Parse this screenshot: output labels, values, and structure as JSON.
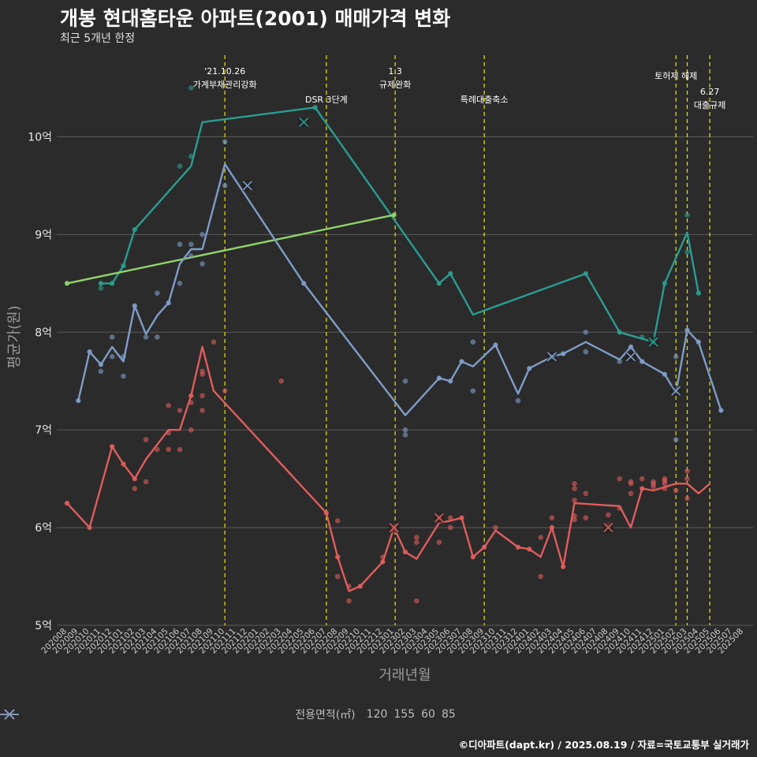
{
  "title": "개봉 현대홈타운 아파트(2001) 매매가격 변화",
  "subtitle": "최근 5개년 한정",
  "caption": "©디아파트(dapt.kr) / 2025.08.19 / 자료=국토교통부 실거래가",
  "chart_data": {
    "type": "line",
    "xlabel": "거래년월",
    "ylabel": "평균가(원)",
    "ylim": [
      5,
      10.9
    ],
    "yticks": [
      {
        "v": 5,
        "label": "5억"
      },
      {
        "v": 6,
        "label": "6억"
      },
      {
        "v": 7,
        "label": "7억"
      },
      {
        "v": 8,
        "label": "8억"
      },
      {
        "v": 9,
        "label": "9억"
      },
      {
        "v": 10,
        "label": "10억"
      }
    ],
    "months": [
      "202008",
      "202009",
      "202010",
      "202011",
      "202012",
      "202101",
      "202102",
      "202103",
      "202104",
      "202105",
      "202106",
      "202107",
      "202108",
      "202109",
      "202110",
      "202111",
      "202112",
      "202201",
      "202202",
      "202203",
      "202204",
      "202205",
      "202206",
      "202207",
      "202208",
      "202209",
      "202210",
      "202211",
      "202212",
      "202301",
      "202302",
      "202303",
      "202304",
      "202305",
      "202306",
      "202307",
      "202308",
      "202309",
      "202310",
      "202311",
      "202312",
      "202401",
      "202402",
      "202403",
      "202404",
      "202405",
      "202406",
      "202407",
      "202408",
      "202409",
      "202410",
      "202411",
      "202412",
      "202501",
      "202502",
      "202503",
      "202504",
      "202505",
      "202506",
      "202507",
      "202508"
    ],
    "legend_title": "전용면적(㎡)",
    "series": [
      {
        "name": "120",
        "color": "#2a9d8f",
        "line": [
          [
            3,
            8.5
          ],
          [
            4,
            8.5
          ],
          [
            5,
            8.68
          ],
          [
            6,
            9.05
          ],
          [
            11,
            9.7
          ],
          [
            12,
            10.15
          ],
          [
            22,
            10.3
          ],
          [
            33,
            8.5
          ],
          [
            34,
            8.6
          ],
          [
            36,
            8.18
          ],
          [
            46,
            8.6
          ],
          [
            49,
            8.0
          ],
          [
            52,
            7.9
          ],
          [
            53,
            8.5
          ],
          [
            55,
            9.02
          ],
          [
            56,
            8.4
          ]
        ],
        "points": [
          [
            3,
            8.45
          ],
          [
            3,
            8.5
          ],
          [
            4,
            8.5
          ],
          [
            5,
            8.68
          ],
          [
            6,
            9.05
          ],
          [
            10,
            9.7
          ],
          [
            11,
            10.5
          ],
          [
            11,
            9.8
          ],
          [
            22,
            10.3
          ],
          [
            33,
            8.5
          ],
          [
            34,
            8.6
          ],
          [
            46,
            8.6
          ],
          [
            49,
            8.0
          ],
          [
            51,
            7.95
          ],
          [
            52,
            7.9
          ],
          [
            53,
            8.5
          ],
          [
            55,
            9.2
          ],
          [
            55,
            8.82
          ],
          [
            56,
            8.4
          ]
        ],
        "crosses": [
          [
            21,
            10.15
          ],
          [
            52,
            7.9
          ]
        ]
      },
      {
        "name": "155",
        "color": "#8fd46a",
        "line": [
          [
            0,
            8.5
          ],
          [
            29,
            9.2
          ]
        ],
        "points": [
          [
            0,
            8.5
          ],
          [
            29,
            9.2
          ]
        ],
        "crosses": []
      },
      {
        "name": "60",
        "color": "#e05c5c",
        "line": [
          [
            0,
            6.25
          ],
          [
            2,
            6.0
          ],
          [
            4,
            6.83
          ],
          [
            5,
            6.65
          ],
          [
            6,
            6.5
          ],
          [
            7,
            6.7
          ],
          [
            9,
            7.0
          ],
          [
            10,
            7.0
          ],
          [
            11,
            7.35
          ],
          [
            12,
            7.85
          ],
          [
            13,
            7.4
          ],
          [
            23,
            6.15
          ],
          [
            24,
            5.7
          ],
          [
            25,
            5.35
          ],
          [
            26,
            5.4
          ],
          [
            28,
            5.65
          ],
          [
            29,
            6.0
          ],
          [
            30,
            5.75
          ],
          [
            31,
            5.68
          ],
          [
            33,
            6.05
          ],
          [
            34,
            6.07
          ],
          [
            35,
            6.1
          ],
          [
            36,
            5.7
          ],
          [
            37,
            5.8
          ],
          [
            38,
            5.97
          ],
          [
            40,
            5.8
          ],
          [
            41,
            5.78
          ],
          [
            42,
            5.7
          ],
          [
            43,
            6.0
          ],
          [
            44,
            5.6
          ],
          [
            45,
            6.25
          ],
          [
            49,
            6.22
          ],
          [
            50,
            6.0
          ],
          [
            51,
            6.4
          ],
          [
            52,
            6.38
          ],
          [
            54,
            6.45
          ],
          [
            55,
            6.45
          ],
          [
            56,
            6.35
          ],
          [
            57,
            6.45
          ]
        ],
        "points": [
          [
            0,
            6.25
          ],
          [
            2,
            6.0
          ],
          [
            4,
            6.83
          ],
          [
            5,
            6.65
          ],
          [
            6,
            6.4
          ],
          [
            6,
            6.5
          ],
          [
            7,
            6.9
          ],
          [
            7,
            6.47
          ],
          [
            8,
            6.8
          ],
          [
            9,
            7.25
          ],
          [
            9,
            6.97
          ],
          [
            9,
            6.8
          ],
          [
            10,
            7.2
          ],
          [
            10,
            6.8
          ],
          [
            11,
            7.35
          ],
          [
            11,
            7.28
          ],
          [
            11,
            7.0
          ],
          [
            12,
            7.6
          ],
          [
            12,
            7.57
          ],
          [
            12,
            7.35
          ],
          [
            12,
            7.2
          ],
          [
            13,
            7.9
          ],
          [
            14,
            7.4
          ],
          [
            19,
            7.5
          ],
          [
            23,
            6.15
          ],
          [
            24,
            6.07
          ],
          [
            24,
            5.7
          ],
          [
            24,
            5.5
          ],
          [
            25,
            5.4
          ],
          [
            25,
            5.25
          ],
          [
            26,
            5.4
          ],
          [
            28,
            5.7
          ],
          [
            28,
            5.65
          ],
          [
            29,
            6.0
          ],
          [
            29,
            5.97
          ],
          [
            30,
            5.75
          ],
          [
            31,
            5.9
          ],
          [
            31,
            5.85
          ],
          [
            31,
            5.25
          ],
          [
            33,
            6.1
          ],
          [
            33,
            5.85
          ],
          [
            34,
            6.1
          ],
          [
            34,
            6.0
          ],
          [
            35,
            6.1
          ],
          [
            36,
            5.7
          ],
          [
            37,
            5.8
          ],
          [
            38,
            6.0
          ],
          [
            40,
            5.8
          ],
          [
            41,
            5.78
          ],
          [
            42,
            5.9
          ],
          [
            42,
            5.5
          ],
          [
            43,
            6.1
          ],
          [
            43,
            6.0
          ],
          [
            44,
            5.6
          ],
          [
            45,
            6.45
          ],
          [
            45,
            6.4
          ],
          [
            45,
            6.28
          ],
          [
            45,
            6.12
          ],
          [
            45,
            6.08
          ],
          [
            46,
            6.35
          ],
          [
            46,
            6.1
          ],
          [
            48,
            6.13
          ],
          [
            48,
            6.03
          ],
          [
            49,
            6.5
          ],
          [
            49,
            6.2
          ],
          [
            50,
            6.47
          ],
          [
            50,
            6.45
          ],
          [
            50,
            6.35
          ],
          [
            51,
            6.5
          ],
          [
            51,
            6.4
          ],
          [
            52,
            6.47
          ],
          [
            52,
            6.45
          ],
          [
            52,
            6.42
          ],
          [
            53,
            6.5
          ],
          [
            53,
            6.48
          ],
          [
            53,
            6.45
          ],
          [
            53,
            6.4
          ],
          [
            54,
            6.38
          ],
          [
            55,
            6.58
          ],
          [
            55,
            6.5
          ],
          [
            55,
            6.3
          ]
        ],
        "crosses": [
          [
            29,
            6.0
          ],
          [
            33,
            6.1
          ],
          [
            48,
            6.0
          ]
        ]
      },
      {
        "name": "85",
        "color": "#7f9cc8",
        "line": [
          [
            1,
            7.3
          ],
          [
            2,
            7.8
          ],
          [
            3,
            7.67
          ],
          [
            4,
            7.85
          ],
          [
            5,
            7.7
          ],
          [
            6,
            8.27
          ],
          [
            7,
            7.98
          ],
          [
            8,
            8.17
          ],
          [
            9,
            8.3
          ],
          [
            10,
            8.7
          ],
          [
            11,
            8.85
          ],
          [
            12,
            8.85
          ],
          [
            14,
            9.72
          ],
          [
            21,
            8.5
          ],
          [
            30,
            7.15
          ],
          [
            33,
            7.53
          ],
          [
            34,
            7.5
          ],
          [
            35,
            7.7
          ],
          [
            36,
            7.65
          ],
          [
            38,
            7.87
          ],
          [
            40,
            7.37
          ],
          [
            41,
            7.63
          ],
          [
            43,
            7.75
          ],
          [
            44,
            7.78
          ],
          [
            46,
            7.9
          ],
          [
            49,
            7.72
          ],
          [
            50,
            7.85
          ],
          [
            51,
            7.7
          ],
          [
            53,
            7.57
          ],
          [
            54,
            7.38
          ],
          [
            55,
            8.02
          ],
          [
            56,
            7.9
          ],
          [
            58,
            7.2
          ]
        ],
        "points": [
          [
            1,
            7.3
          ],
          [
            2,
            7.8
          ],
          [
            3,
            7.6
          ],
          [
            3,
            7.67
          ],
          [
            4,
            7.95
          ],
          [
            4,
            7.75
          ],
          [
            5,
            7.55
          ],
          [
            5,
            7.75
          ],
          [
            6,
            8.27
          ],
          [
            7,
            7.95
          ],
          [
            8,
            8.4
          ],
          [
            8,
            7.95
          ],
          [
            9,
            8.3
          ],
          [
            10,
            8.9
          ],
          [
            10,
            8.5
          ],
          [
            11,
            8.9
          ],
          [
            11,
            8.78
          ],
          [
            12,
            9.0
          ],
          [
            12,
            8.7
          ],
          [
            14,
            9.95
          ],
          [
            14,
            9.5
          ],
          [
            21,
            8.5
          ],
          [
            30,
            7.5
          ],
          [
            30,
            7.0
          ],
          [
            30,
            6.95
          ],
          [
            33,
            7.53
          ],
          [
            34,
            7.5
          ],
          [
            35,
            7.7
          ],
          [
            36,
            7.9
          ],
          [
            36,
            7.4
          ],
          [
            38,
            7.87
          ],
          [
            40,
            7.3
          ],
          [
            41,
            7.63
          ],
          [
            43,
            7.75
          ],
          [
            44,
            7.78
          ],
          [
            46,
            8.0
          ],
          [
            46,
            7.8
          ],
          [
            49,
            7.7
          ],
          [
            50,
            7.85
          ],
          [
            51,
            7.7
          ],
          [
            53,
            7.57
          ],
          [
            54,
            7.75
          ],
          [
            54,
            6.9
          ],
          [
            55,
            8.02
          ],
          [
            56,
            7.9
          ],
          [
            58,
            7.2
          ]
        ],
        "crosses": [
          [
            16,
            9.5
          ],
          [
            43,
            7.75
          ],
          [
            50,
            7.75
          ],
          [
            54,
            7.4
          ]
        ]
      }
    ],
    "events": [
      {
        "idx": 14.0,
        "lines": [
          "'21.10.26",
          "가계부채관리강화"
        ],
        "level": 0
      },
      {
        "idx": 23.0,
        "lines": [
          "DSR 3단계"
        ],
        "level": 2
      },
      {
        "idx": 29.1,
        "lines": [
          "1.3",
          "규제완화"
        ],
        "level": 0
      },
      {
        "idx": 37.0,
        "lines": [
          "특례대출축소"
        ],
        "level": 2
      },
      {
        "idx": 54.0,
        "lines": [
          "토허제 해제"
        ],
        "level": 1
      },
      {
        "idx": 55.0,
        "lines": [],
        "level": 0
      },
      {
        "idx": 57.0,
        "lines": [
          "6.27",
          "대출규제"
        ],
        "level": 3
      }
    ]
  }
}
